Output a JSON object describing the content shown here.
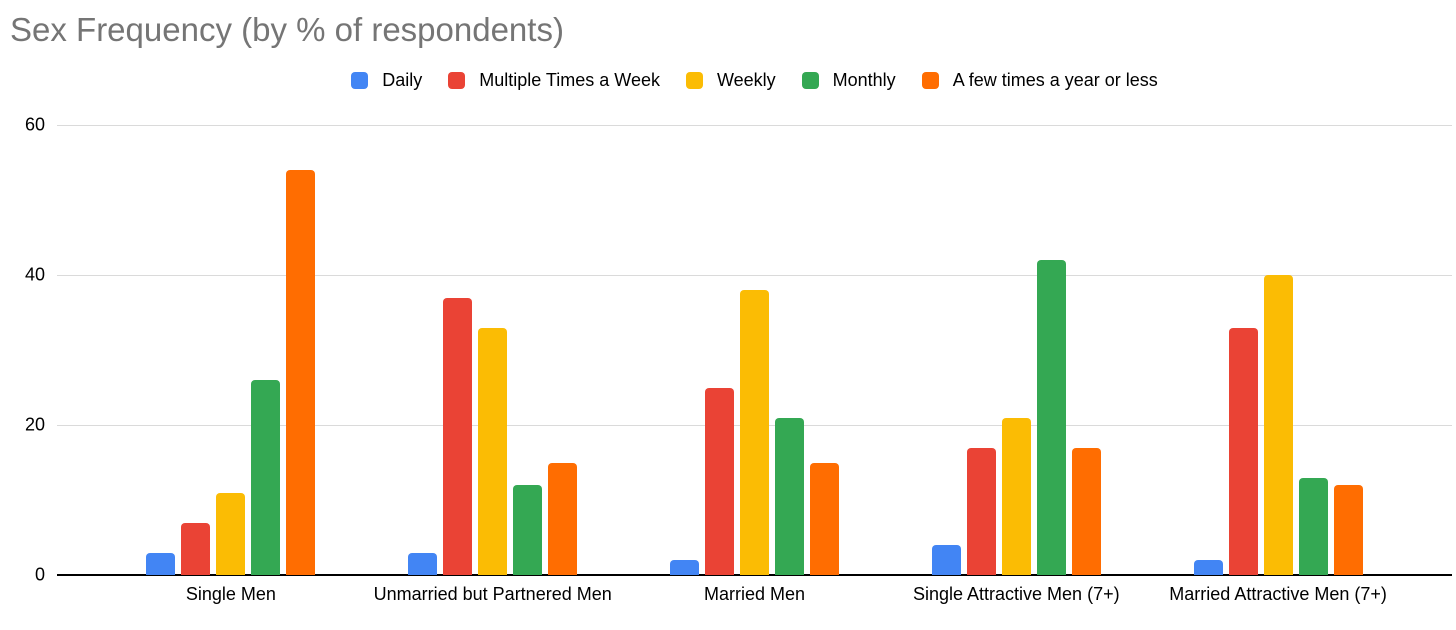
{
  "chart_data": {
    "type": "bar",
    "title": "Sex Frequency (by % of respondents)",
    "categories": [
      "Single Men",
      "Unmarried but Partnered Men",
      "Married Men",
      "Single Attractive Men (7+)",
      "Married Attractive Men (7+)"
    ],
    "series": [
      {
        "name": "Daily",
        "color": "#4285F4",
        "values": [
          3,
          3,
          2,
          4,
          2
        ]
      },
      {
        "name": "Multiple Times a Week",
        "color": "#EA4335",
        "values": [
          7,
          37,
          25,
          17,
          33
        ]
      },
      {
        "name": "Weekly",
        "color": "#FBBC04",
        "values": [
          11,
          33,
          38,
          21,
          40
        ]
      },
      {
        "name": "Monthly",
        "color": "#34A853",
        "values": [
          26,
          12,
          21,
          42,
          13
        ]
      },
      {
        "name": "A few times a year or less",
        "color": "#FF6D01",
        "values": [
          54,
          15,
          15,
          17,
          12
        ]
      }
    ],
    "xlabel": "",
    "ylabel": "",
    "ylim": [
      0,
      60
    ],
    "yticks": [
      0,
      20,
      40,
      60
    ],
    "grid": true,
    "legend_position": "top",
    "title_color": "#757575"
  }
}
